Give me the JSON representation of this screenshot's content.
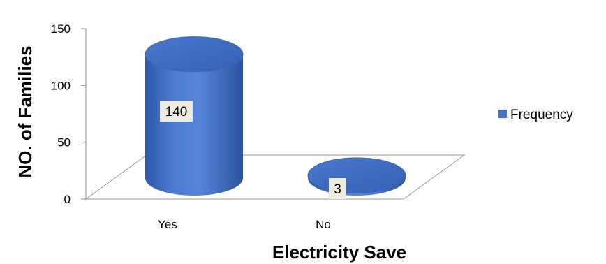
{
  "chart_data": {
    "type": "bar",
    "categories": [
      "Yes",
      "No"
    ],
    "series": [
      {
        "name": "Frequency",
        "values": [
          140,
          3
        ],
        "color": "#4472C4"
      }
    ],
    "xlabel": "Electricity Save",
    "ylabel": "NO. of Families",
    "ylim": [
      0,
      150
    ],
    "yticks": [
      0,
      50,
      100,
      150
    ],
    "data_labels": [
      "140",
      "3"
    ],
    "legend_position": "right",
    "grid": false,
    "style": "3d-cylinder"
  }
}
